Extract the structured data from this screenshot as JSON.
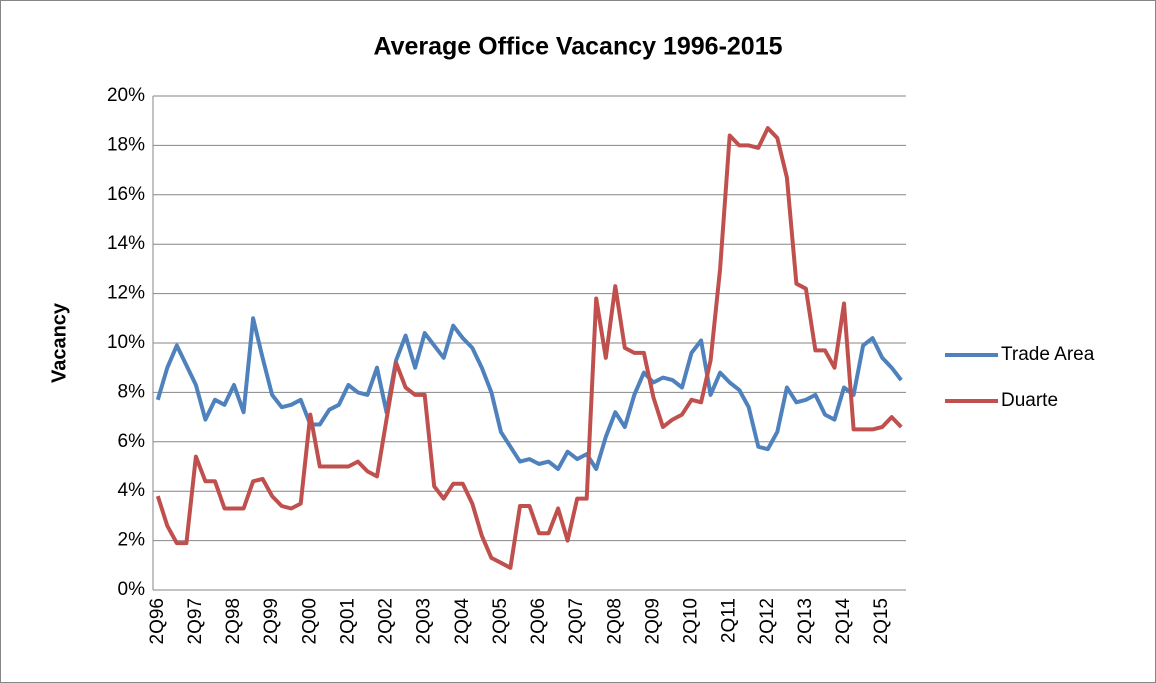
{
  "chart_data": {
    "type": "line",
    "title": "Average Office Vacancy 1996-2015",
    "y_label": "Vacancy",
    "categories": [
      "2Q96",
      null,
      null,
      null,
      "2Q97",
      null,
      null,
      null,
      "2Q98",
      null,
      null,
      null,
      "2Q99",
      null,
      null,
      null,
      "2Q00",
      null,
      null,
      null,
      "2Q01",
      null,
      null,
      null,
      "2Q02",
      null,
      null,
      null,
      "2Q03",
      null,
      null,
      null,
      "2Q04",
      null,
      null,
      null,
      "2Q05",
      null,
      null,
      null,
      "2Q06",
      null,
      null,
      null,
      "2Q07",
      null,
      null,
      null,
      "2Q08",
      null,
      null,
      null,
      "2Q09",
      null,
      null,
      null,
      "2Q10",
      null,
      null,
      null,
      "2Q11",
      null,
      null,
      null,
      "2Q12",
      null,
      null,
      null,
      "2Q13",
      null,
      null,
      null,
      "2Q14",
      null,
      null,
      null,
      "2Q15",
      null,
      null
    ],
    "series": [
      {
        "name": "Trade Area",
        "color": "#4f81bd",
        "values": [
          7.7,
          9.0,
          9.9,
          9.1,
          8.3,
          6.9,
          7.7,
          7.5,
          8.3,
          7.2,
          11.0,
          9.4,
          7.9,
          7.4,
          7.5,
          7.7,
          6.7,
          6.7,
          7.3,
          7.5,
          8.3,
          8.0,
          7.9,
          9.0,
          7.2,
          9.3,
          10.3,
          9.0,
          10.4,
          9.9,
          9.4,
          10.7,
          10.2,
          9.8,
          9.0,
          8.0,
          6.4,
          5.8,
          5.2,
          5.3,
          5.1,
          5.2,
          4.9,
          5.6,
          5.3,
          5.5,
          4.9,
          6.2,
          7.2,
          6.6,
          7.9,
          8.8,
          8.4,
          8.6,
          8.5,
          8.2,
          9.6,
          10.1,
          7.9,
          8.8,
          8.4,
          8.1,
          7.4,
          5.8,
          5.7,
          6.4,
          8.2,
          7.6,
          7.7,
          7.9,
          7.1,
          6.9,
          8.2,
          7.9,
          9.9,
          10.2,
          9.4,
          9.0,
          8.5
        ]
      },
      {
        "name": "Duarte",
        "color": "#c0504d",
        "values": [
          3.8,
          2.6,
          1.9,
          1.9,
          5.4,
          4.4,
          4.4,
          3.3,
          3.3,
          3.3,
          4.4,
          4.5,
          3.8,
          3.4,
          3.3,
          3.5,
          7.1,
          5.0,
          5.0,
          5.0,
          5.0,
          5.2,
          4.8,
          4.6,
          6.9,
          9.2,
          8.2,
          7.9,
          7.9,
          4.2,
          3.7,
          4.3,
          4.3,
          3.5,
          2.2,
          1.3,
          1.1,
          0.9,
          3.4,
          3.4,
          2.3,
          2.3,
          3.3,
          2.0,
          3.7,
          3.7,
          11.8,
          9.4,
          12.3,
          9.8,
          9.6,
          9.6,
          7.8,
          6.6,
          6.9,
          7.1,
          7.7,
          7.6,
          9.3,
          13.0,
          18.4,
          18.0,
          18.0,
          17.9,
          18.7,
          18.3,
          16.7,
          12.4,
          12.2,
          9.7,
          9.7,
          9.0,
          11.6,
          6.5,
          6.5,
          6.5,
          6.6,
          7.0,
          6.6
        ]
      }
    ],
    "ylim": [
      0,
      20
    ],
    "yticks": [
      {
        "value": 0,
        "label": "0%"
      },
      {
        "value": 2,
        "label": "2%"
      },
      {
        "value": 4,
        "label": "4%"
      },
      {
        "value": 6,
        "label": "6%"
      },
      {
        "value": 8,
        "label": "8%"
      },
      {
        "value": 10,
        "label": "10%"
      },
      {
        "value": 12,
        "label": "12%"
      },
      {
        "value": 14,
        "label": "14%"
      },
      {
        "value": 16,
        "label": "16%"
      },
      {
        "value": 18,
        "label": "18%"
      },
      {
        "value": 20,
        "label": "20%"
      }
    ],
    "grid": true,
    "legend": "right"
  }
}
